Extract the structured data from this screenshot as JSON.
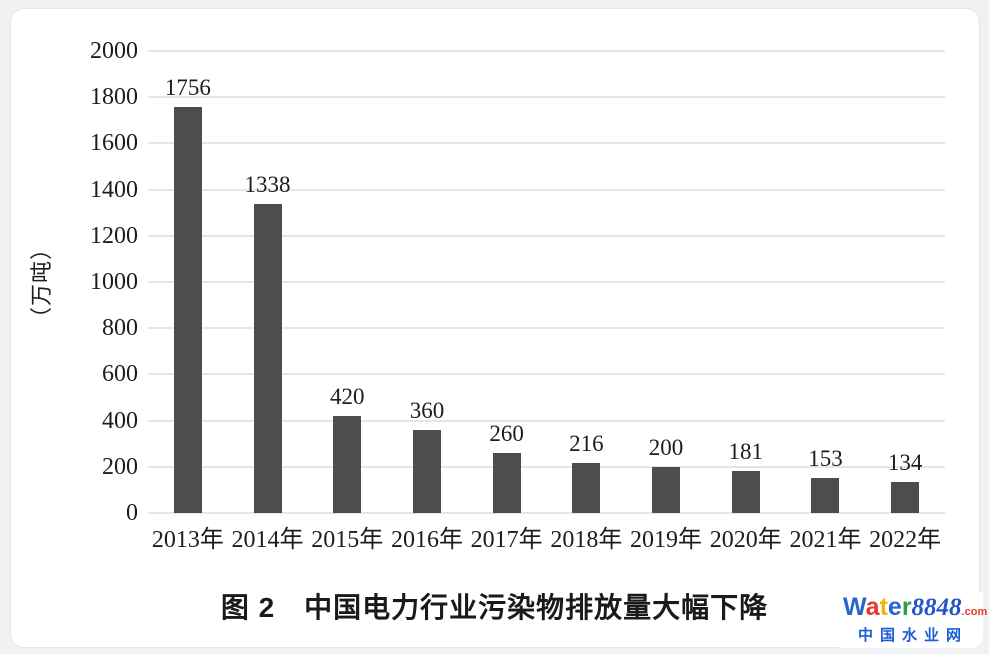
{
  "page": {
    "background_color": "#f0f1f2",
    "card_color": "#ffffff"
  },
  "chart_data": {
    "type": "bar",
    "categories": [
      "2013年",
      "2014年",
      "2015年",
      "2016年",
      "2017年",
      "2018年",
      "2019年",
      "2020年",
      "2021年",
      "2022年"
    ],
    "values": [
      1756,
      1338,
      420,
      360,
      260,
      216,
      200,
      181,
      153,
      134
    ],
    "title": "",
    "xlabel": "",
    "ylabel": "（万吨）",
    "ylim": [
      0,
      2000
    ],
    "ytick_step": 200,
    "grid": "horizontal",
    "legend": "none",
    "bar_color": "#4e4c4c",
    "gridline_color": "#e6e6e6",
    "text_color": "#1d1d1d"
  },
  "caption": {
    "text": "图 2　中国电力行业污染物排放量大幅下降"
  },
  "logo": {
    "word_letters": [
      {
        "ch": "W",
        "color": "#2a64cc"
      },
      {
        "ch": "a",
        "color": "#e23a2a"
      },
      {
        "ch": "t",
        "color": "#f4b400"
      },
      {
        "ch": "e",
        "color": "#2a64cc"
      },
      {
        "ch": "r",
        "color": "#2f9e44"
      }
    ],
    "number": "8848",
    "number_color": "#2355c8",
    "tld": ".com",
    "tld_color": "#e23a2a",
    "subtitle": "中国水业网",
    "subtitle_color": "#1d5dd6"
  }
}
